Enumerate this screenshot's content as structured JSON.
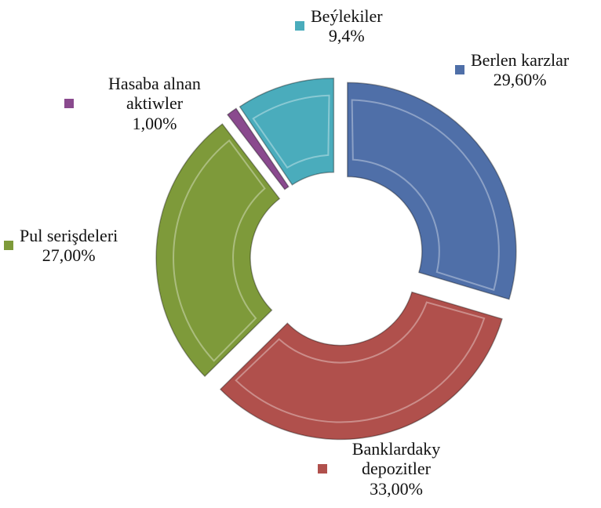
{
  "chart_data": {
    "type": "donut",
    "categories": [
      "Berlen karzlar",
      "Banklardaky depozitler",
      "Pul serişdeleri",
      "Hasaba alnan aktiwler",
      "Beýlekiler"
    ],
    "values": [
      29.6,
      33,
      27,
      1,
      9.4
    ],
    "value_labels": [
      "29,60%",
      "33,00%",
      "27,00%",
      "1,00%",
      "9,4%"
    ],
    "colors": [
      "#4f6fa8",
      "#b0504c",
      "#7e9a3a",
      "#8a4a8e",
      "#4aacbc"
    ]
  }
}
